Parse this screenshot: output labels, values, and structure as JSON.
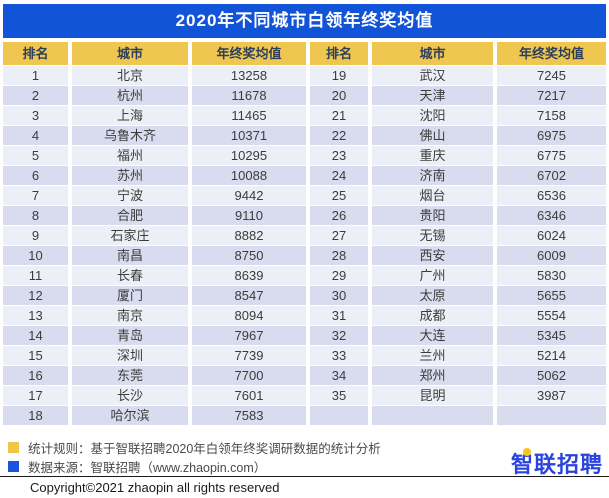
{
  "title": "2020年不同城市白领年终奖均值",
  "header_columns": [
    "排名",
    "城市",
    "年终奖均值",
    "排名",
    "城市",
    "年终奖均值"
  ],
  "chart_data": {
    "type": "table",
    "title": "2020年不同城市白领年终奖均值",
    "columns": [
      "排名",
      "城市",
      "年终奖均值"
    ],
    "rows": [
      [
        1,
        "北京",
        13258
      ],
      [
        2,
        "杭州",
        11678
      ],
      [
        3,
        "上海",
        11465
      ],
      [
        4,
        "乌鲁木齐",
        10371
      ],
      [
        5,
        "福州",
        10295
      ],
      [
        6,
        "苏州",
        10088
      ],
      [
        7,
        "宁波",
        9442
      ],
      [
        8,
        "合肥",
        9110
      ],
      [
        9,
        "石家庄",
        8882
      ],
      [
        10,
        "南昌",
        8750
      ],
      [
        11,
        "长春",
        8639
      ],
      [
        12,
        "厦门",
        8547
      ],
      [
        13,
        "南京",
        8094
      ],
      [
        14,
        "青岛",
        7967
      ],
      [
        15,
        "深圳",
        7739
      ],
      [
        16,
        "东莞",
        7700
      ],
      [
        17,
        "长沙",
        7601
      ],
      [
        18,
        "哈尔滨",
        7583
      ],
      [
        19,
        "武汉",
        7245
      ],
      [
        20,
        "天津",
        7217
      ],
      [
        21,
        "沈阳",
        7158
      ],
      [
        22,
        "佛山",
        6975
      ],
      [
        23,
        "重庆",
        6775
      ],
      [
        24,
        "济南",
        6702
      ],
      [
        25,
        "烟台",
        6536
      ],
      [
        26,
        "贵阳",
        6346
      ],
      [
        27,
        "无锡",
        6024
      ],
      [
        28,
        "西安",
        6009
      ],
      [
        29,
        "广州",
        5830
      ],
      [
        30,
        "太原",
        5655
      ],
      [
        31,
        "成都",
        5554
      ],
      [
        32,
        "大连",
        5345
      ],
      [
        33,
        "兰州",
        5214
      ],
      [
        34,
        "郑州",
        5062
      ],
      [
        35,
        "昆明",
        3987
      ]
    ],
    "layout": {
      "split_into_two_halves": true,
      "rows_per_half": 18,
      "last_right_row_empty": true
    }
  },
  "footer": {
    "notes": [
      {
        "text": "统计规则：基于智联招聘2020年白领年终奖调研数据的统计分析",
        "color": "#f0c64a"
      },
      {
        "text": "数据来源：智联招聘（www.zhaopin.com）",
        "color": "#1a52e2"
      }
    ],
    "copyright": "Copyright©2021 zhaopin all rights reserved",
    "logo_text": "智联招聘"
  },
  "colors": {
    "title_bar": "#1254d8",
    "header_cell": "#efc64f",
    "header_text": "#2e3f5c",
    "row_odd": "#edeff7",
    "row_even": "#d8dcee",
    "logo_blue": "#2b43df",
    "logo_dot_yellow": "#f5c518"
  }
}
